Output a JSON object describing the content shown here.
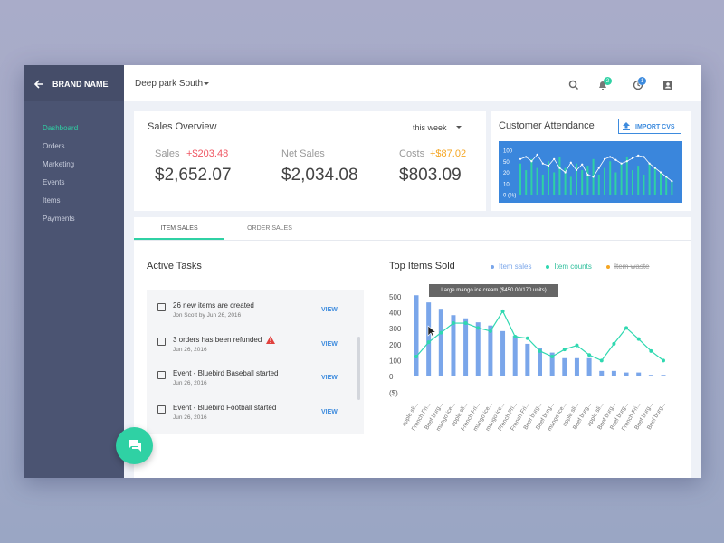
{
  "sidebar": {
    "brand": "BRAND NAME",
    "nav": [
      "Dashboard",
      "Orders",
      "Marketing",
      "Events",
      "Items",
      "Payments"
    ],
    "active": 0
  },
  "topbar": {
    "location": "Deep park South",
    "notifications": "2",
    "history": "1"
  },
  "sales_overview": {
    "title": "Sales Overview",
    "period": "this week",
    "metrics": [
      {
        "label": "Sales",
        "change": "+$203.48",
        "value": "$2,652.07"
      },
      {
        "label": "Net Sales",
        "value": "$2,034.08"
      },
      {
        "label": "Costs",
        "change": "+$87.02",
        "value": "$803.09"
      }
    ]
  },
  "attendance": {
    "title": "Customer Attendance",
    "button": "IMPORT CVS",
    "chart_data": {
      "type": "bar-line",
      "y_labels": [
        "100",
        "50",
        "20",
        "10",
        "0 (%)"
      ],
      "ylim": [
        0,
        100
      ],
      "bar_color": "#2fd1a4",
      "line_color": "#ffffff",
      "bar_values": [
        70,
        55,
        80,
        60,
        45,
        75,
        50,
        85,
        60,
        40,
        70,
        55,
        65,
        80,
        45,
        60,
        75,
        50,
        70,
        85,
        55,
        65,
        45,
        70,
        60,
        50,
        40,
        30
      ],
      "line_values": [
        80,
        85,
        75,
        90,
        70,
        65,
        80,
        60,
        50,
        72,
        55,
        68,
        45,
        40,
        60,
        80,
        85,
        78,
        70,
        75,
        82,
        88,
        85,
        70,
        60,
        50,
        40,
        30
      ]
    }
  },
  "tabs": [
    "ITEM SALES",
    "ORDER SALES"
  ],
  "active_tasks": {
    "title": "Active Tasks",
    "action": "VIEW",
    "items": [
      {
        "title": "26 new items are created",
        "meta": "Jon Scott by Jun 26, 2016"
      },
      {
        "title": "3 orders has been refunded",
        "meta": "Jun 26, 2016",
        "warning": true
      },
      {
        "title": "Event - Bluebird Baseball started",
        "meta": "Jun 26, 2016"
      },
      {
        "title": "Event - Bluebird Football started",
        "meta": "Jun 26, 2016"
      }
    ]
  },
  "chart_data": {
    "type": "bar-line",
    "title": "Top Items Sold",
    "y_unit": "($)",
    "annotation": "Large mango ice cream ($450.00/170 units)",
    "categories": [
      "apple sli...",
      "French Fri...",
      "Beef burg...",
      "mango ice...",
      "apple sli...",
      "French Fri...",
      "mango ice...",
      "mango ice...",
      "French Fri...",
      "French Fri...",
      "Beef burg...",
      "Beef burg...",
      "mango ice...",
      "apple sli...",
      "Beef burg...",
      "apple sli...",
      "Beef burg...",
      "Beef burg...",
      "French Fri...",
      "Beef burg...",
      "Beef burg..."
    ],
    "ylim": [
      0,
      500
    ],
    "yticks": [
      500,
      400,
      300,
      200,
      100,
      0
    ],
    "series": [
      {
        "name": "Item sales",
        "color": "#7aa6ea",
        "values": [
          510,
          465,
          425,
          385,
          365,
          340,
          320,
          285,
          255,
          205,
          180,
          150,
          115,
          115,
          115,
          35,
          35,
          25,
          25,
          10,
          10
        ]
      },
      {
        "name": "Item counts",
        "color": "#2fd8b0",
        "values": [
          125,
          215,
          275,
          335,
          335,
          305,
          285,
          410,
          250,
          240,
          160,
          125,
          170,
          195,
          135,
          100,
          205,
          305,
          235,
          160,
          100
        ]
      },
      {
        "name": "Item waste",
        "color": "#f5a623",
        "hidden": true
      }
    ]
  }
}
